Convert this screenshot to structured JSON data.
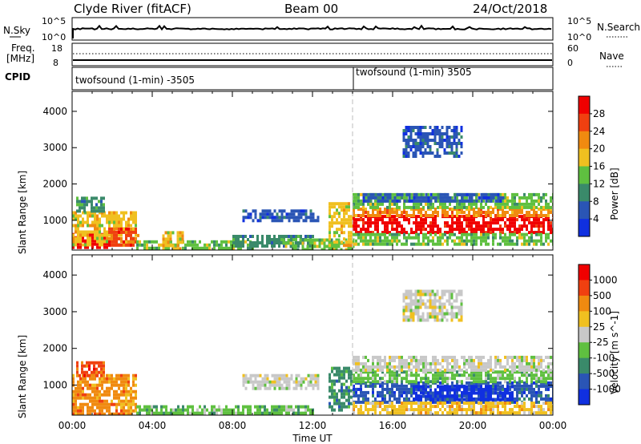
{
  "header": {
    "station": "Clyde River (fitACF)",
    "beam": "Beam 00",
    "date": "24/Oct/2018"
  },
  "summary_panels": {
    "nsky_label": "N.Sky",
    "nsky_ticks": [
      "10^5",
      "10^0"
    ],
    "nsearch_label": "N.Search",
    "nsearch_ticks": [
      "10^5",
      "10^0"
    ],
    "freq_label_1": "Freq.",
    "freq_label_2": "[MHz]",
    "freq_ticks": [
      "18",
      "8"
    ],
    "nave_label": "Nave",
    "nave_ticks": [
      "60",
      "0"
    ],
    "cpid_label": "CPID",
    "cpid_segments": [
      {
        "text": "twofsound (1-min) -3505",
        "start_hour": 0
      },
      {
        "text": "twofsound (1-min) 3505",
        "start_hour": 14
      }
    ]
  },
  "chart_data": [
    {
      "type": "heatmap",
      "quantity": "power",
      "ylabel": "Slant Range [km]",
      "xlabel": "",
      "xlim": [
        0,
        24
      ],
      "ylim": [
        180,
        4550
      ],
      "yticks": [
        1000,
        2000,
        3000,
        4000
      ],
      "colorbar": {
        "label": "Power [dB]",
        "ticks": [
          "4",
          "8",
          "12",
          "16",
          "20",
          "24",
          "28"
        ],
        "colors": [
          "#1030e0",
          "#2a55b5",
          "#3a8a6a",
          "#5fc040",
          "#f0c020",
          "#f08a10",
          "#f04010",
          "#f00000"
        ]
      },
      "regions": [
        {
          "t0": 0.0,
          "t1": 1.8,
          "r0": 250,
          "r1": 650,
          "level": 7
        },
        {
          "t0": 0.0,
          "t1": 3.2,
          "r0": 350,
          "r1": 1250,
          "level": 4
        },
        {
          "t0": 1.8,
          "t1": 3.3,
          "r0": 300,
          "r1": 800,
          "level": 6
        },
        {
          "t0": 0.2,
          "t1": 1.6,
          "r0": 1250,
          "r1": 1650,
          "level": 2
        },
        {
          "t0": 3.2,
          "t1": 9.0,
          "r0": 200,
          "r1": 450,
          "level": 3
        },
        {
          "t0": 4.5,
          "t1": 5.5,
          "r0": 250,
          "r1": 700,
          "level": 4
        },
        {
          "t0": 8.0,
          "t1": 12.0,
          "r0": 250,
          "r1": 600,
          "level": 2
        },
        {
          "t0": 10.5,
          "t1": 14.0,
          "r0": 200,
          "r1": 500,
          "level": 3
        },
        {
          "t0": 8.5,
          "t1": 12.3,
          "r0": 950,
          "r1": 1300,
          "level": 1
        },
        {
          "t0": 12.8,
          "t1": 14.0,
          "r0": 350,
          "r1": 1500,
          "level": 4
        },
        {
          "t0": 14.0,
          "t1": 24.0,
          "r0": 650,
          "r1": 1150,
          "level": 7
        },
        {
          "t0": 14.0,
          "t1": 24.0,
          "r0": 1150,
          "r1": 1350,
          "level": 5
        },
        {
          "t0": 14.0,
          "t1": 24.0,
          "r0": 300,
          "r1": 650,
          "level": 3
        },
        {
          "t0": 14.0,
          "t1": 24.0,
          "r0": 1350,
          "r1": 1750,
          "level": 3
        },
        {
          "t0": 14.5,
          "t1": 21.5,
          "r0": 1500,
          "r1": 1750,
          "level": 1
        },
        {
          "t0": 16.5,
          "t1": 19.5,
          "r0": 2800,
          "r1": 3600,
          "level": 1
        }
      ]
    },
    {
      "type": "heatmap",
      "quantity": "velocity",
      "ylabel": "Slant Range [km]",
      "xlabel": "Time UT",
      "xlim": [
        0,
        24
      ],
      "ylim": [
        180,
        4550
      ],
      "xticks": [
        "00:00",
        "04:00",
        "08:00",
        "12:00",
        "16:00",
        "20:00",
        "00:00"
      ],
      "yticks": [
        1000,
        2000,
        3000,
        4000
      ],
      "colorbar": {
        "label": "Velocity [m s^-1]",
        "ticks": [
          "1000",
          "500",
          "100",
          "25",
          "-25",
          "-100",
          "-500",
          "-1000"
        ],
        "colors": [
          "#1030e0",
          "#2a55b5",
          "#3a8a6a",
          "#5fc040",
          "#c8c8c8",
          "#f0c020",
          "#f08a10",
          "#f04010",
          "#f00000"
        ]
      },
      "regions": [
        {
          "t0": 0.0,
          "t1": 3.2,
          "r0": 250,
          "r1": 1300,
          "level": 6
        },
        {
          "t0": 0.2,
          "t1": 1.6,
          "r0": 1250,
          "r1": 1650,
          "level": 7
        },
        {
          "t0": 3.2,
          "t1": 12.0,
          "r0": 200,
          "r1": 450,
          "level": 3
        },
        {
          "t0": 8.5,
          "t1": 12.3,
          "r0": 950,
          "r1": 1300,
          "level": 4
        },
        {
          "t0": 12.8,
          "t1": 14.0,
          "r0": 350,
          "r1": 1500,
          "level": 2
        },
        {
          "t0": 14.0,
          "t1": 24.0,
          "r0": 550,
          "r1": 1100,
          "level": 1
        },
        {
          "t0": 17.0,
          "t1": 22.0,
          "r0": 600,
          "r1": 1000,
          "level": 0
        },
        {
          "t0": 14.0,
          "t1": 24.0,
          "r0": 1100,
          "r1": 1400,
          "level": 3
        },
        {
          "t0": 14.0,
          "t1": 24.0,
          "r0": 1400,
          "r1": 1800,
          "level": 4
        },
        {
          "t0": 14.0,
          "t1": 24.0,
          "r0": 250,
          "r1": 550,
          "level": 5
        },
        {
          "t0": 16.5,
          "t1": 19.5,
          "r0": 2800,
          "r1": 3600,
          "level": 4
        }
      ]
    }
  ]
}
